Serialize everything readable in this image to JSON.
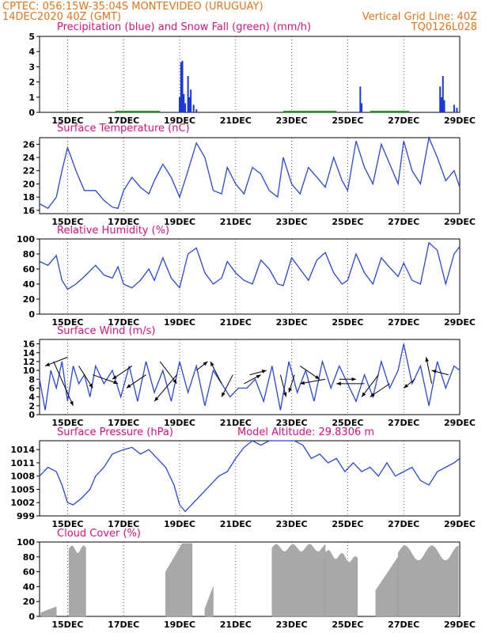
{
  "header": {
    "line1_left": "CPTEC:   056:15W-35:04S   MONTEVIDEO (URUGUAY)",
    "line2_left": "14DEC2020 40Z (GMT)",
    "line2_right": "Vertical Grid Line: 40Z",
    "line3_right": "TQ0126L028"
  },
  "colors": {
    "line": "#2a45e0",
    "precip": "#1a38d8",
    "snow": "#1aa01a",
    "cloud": "#a8a8a8",
    "title": "#e0107a",
    "header": "#e8731a"
  },
  "chart_data": [
    {
      "type": "bar",
      "title": "Precipitation (blue) and Snow Fall (green) (mm/h)",
      "x_ticks": [
        "15DEC",
        "17DEC",
        "19DEC",
        "21DEC",
        "23DEC",
        "25DEC",
        "27DEC",
        "29DEC"
      ],
      "ylim": [
        0,
        5
      ],
      "y_ticks": [
        0,
        1,
        2,
        3,
        4,
        5
      ],
      "series": [
        {
          "name": "Precipitation",
          "color": "blue",
          "x": [
            19.0,
            19.05,
            19.1,
            19.15,
            19.2,
            19.3,
            19.35,
            19.4,
            19.5,
            19.6,
            25.45,
            25.5,
            28.3,
            28.35,
            28.4,
            28.45,
            28.8,
            28.9
          ],
          "values": [
            1.0,
            3.3,
            3.4,
            1.2,
            0.6,
            2.4,
            1.0,
            1.5,
            0.5,
            0.2,
            1.7,
            0.6,
            1.7,
            1.0,
            2.4,
            0.8,
            0.5,
            0.3
          ]
        }
      ],
      "grid": true
    },
    {
      "type": "line",
      "title": "Surface Temperature (nC)",
      "x_ticks": [
        "15DEC",
        "17DEC",
        "19DEC",
        "21DEC",
        "23DEC",
        "25DEC",
        "27DEC",
        "29DEC"
      ],
      "ylim": [
        15.5,
        27
      ],
      "y_ticks": [
        16,
        18,
        20,
        22,
        24,
        26
      ],
      "x": [
        14.0,
        14.3,
        14.6,
        14.8,
        15.0,
        15.3,
        15.6,
        16.0,
        16.3,
        16.6,
        16.8,
        17.0,
        17.3,
        17.6,
        17.9,
        18.1,
        18.4,
        18.7,
        19.0,
        19.3,
        19.6,
        19.9,
        20.2,
        20.5,
        20.7,
        21.0,
        21.3,
        21.6,
        21.9,
        22.2,
        22.5,
        22.7,
        23.0,
        23.3,
        23.6,
        23.9,
        24.2,
        24.5,
        24.8,
        25.0,
        25.3,
        25.6,
        25.9,
        26.2,
        26.5,
        26.8,
        27.0,
        27.3,
        27.6,
        27.9,
        28.2,
        28.5,
        28.8,
        29.0
      ],
      "y": [
        17.0,
        16.3,
        18.0,
        22.0,
        25.5,
        22.0,
        19.0,
        19.0,
        17.5,
        16.5,
        16.3,
        19.0,
        21.0,
        19.5,
        18.5,
        20.5,
        23.0,
        21.0,
        18.0,
        22.0,
        26.2,
        24.0,
        19.0,
        18.5,
        22.5,
        20.0,
        18.5,
        22.5,
        21.5,
        19.0,
        18.0,
        24.0,
        20.0,
        18.5,
        22.5,
        21.0,
        19.5,
        24.0,
        20.5,
        19.0,
        26.5,
        22.5,
        20.0,
        26.0,
        23.0,
        20.0,
        26.5,
        22.0,
        20.0,
        27.0,
        24.0,
        20.5,
        22.0,
        19.5
      ],
      "grid": true
    },
    {
      "type": "line",
      "title": "Relative Humidity (%)",
      "x_ticks": [
        "15DEC",
        "17DEC",
        "19DEC",
        "21DEC",
        "23DEC",
        "25DEC",
        "27DEC",
        "29DEC"
      ],
      "ylim": [
        0,
        100
      ],
      "y_ticks": [
        0,
        20,
        40,
        60,
        80,
        100
      ],
      "x": [
        14.0,
        14.3,
        14.6,
        14.8,
        15.0,
        15.3,
        15.6,
        16.0,
        16.3,
        16.6,
        16.8,
        17.0,
        17.3,
        17.6,
        17.9,
        18.1,
        18.4,
        18.7,
        19.0,
        19.3,
        19.6,
        19.9,
        20.2,
        20.5,
        20.7,
        21.0,
        21.3,
        21.6,
        21.9,
        22.2,
        22.5,
        22.7,
        23.0,
        23.3,
        23.6,
        23.9,
        24.2,
        24.5,
        24.8,
        25.0,
        25.3,
        25.6,
        25.9,
        26.2,
        26.5,
        26.8,
        27.0,
        27.3,
        27.6,
        27.9,
        28.2,
        28.5,
        28.8,
        29.0
      ],
      "y": [
        70,
        65,
        78,
        45,
        33,
        40,
        50,
        65,
        52,
        48,
        63,
        40,
        35,
        45,
        60,
        45,
        75,
        48,
        35,
        80,
        88,
        55,
        40,
        48,
        70,
        55,
        45,
        40,
        72,
        60,
        40,
        38,
        75,
        60,
        45,
        72,
        82,
        55,
        40,
        45,
        80,
        55,
        40,
        75,
        62,
        50,
        68,
        45,
        40,
        95,
        85,
        40,
        80,
        90
      ],
      "grid": true
    },
    {
      "type": "line",
      "title": "Surface Wind (m/s)",
      "x_ticks": [
        "15DEC",
        "17DEC",
        "19DEC",
        "21DEC",
        "23DEC",
        "25DEC",
        "27DEC",
        "29DEC"
      ],
      "ylim": [
        0,
        17
      ],
      "y_ticks": [
        0,
        2,
        4,
        6,
        8,
        10,
        12,
        14,
        16
      ],
      "x": [
        14.0,
        14.2,
        14.4,
        14.6,
        14.8,
        15.0,
        15.2,
        15.4,
        15.6,
        15.8,
        16.0,
        16.3,
        16.6,
        16.9,
        17.2,
        17.5,
        17.8,
        18.1,
        18.4,
        18.7,
        19.0,
        19.3,
        19.6,
        19.9,
        20.2,
        20.5,
        20.8,
        21.1,
        21.4,
        21.7,
        22.0,
        22.3,
        22.6,
        22.9,
        23.2,
        23.5,
        23.8,
        24.1,
        24.4,
        24.7,
        25.0,
        25.3,
        25.6,
        25.9,
        26.2,
        26.5,
        26.8,
        27.0,
        27.3,
        27.6,
        27.9,
        28.2,
        28.5,
        28.8,
        29.0
      ],
      "y": [
        8,
        1,
        10,
        6,
        12,
        3,
        11,
        7,
        9,
        4,
        11,
        7,
        10,
        4,
        11,
        3,
        12,
        5,
        10,
        3,
        12,
        5,
        11,
        2,
        10,
        7,
        4,
        6,
        6,
        8,
        3,
        11,
        1,
        12,
        5,
        10,
        3,
        12,
        6,
        11,
        7,
        3,
        9,
        4,
        12,
        6,
        10,
        16,
        7,
        11,
        2,
        12,
        6,
        11,
        10
      ],
      "grid": true
    },
    {
      "type": "line",
      "title": "Surface Pressure (hPa)",
      "annotation": "Model Altitude: 29.8306 m",
      "x_ticks": [
        "15DEC",
        "17DEC",
        "19DEC",
        "21DEC",
        "23DEC",
        "25DEC",
        "27DEC",
        "29DEC"
      ],
      "ylim": [
        999,
        1016
      ],
      "y_ticks": [
        999,
        1002,
        1005,
        1008,
        1011,
        1014
      ],
      "x": [
        14.0,
        14.3,
        14.6,
        14.8,
        15.0,
        15.2,
        15.5,
        15.8,
        16.0,
        16.3,
        16.6,
        17.0,
        17.3,
        17.6,
        17.9,
        18.2,
        18.5,
        18.8,
        19.0,
        19.2,
        19.5,
        19.8,
        20.1,
        20.4,
        20.7,
        21.0,
        21.3,
        21.6,
        21.9,
        22.2,
        22.5,
        22.8,
        23.1,
        23.4,
        23.7,
        24.0,
        24.3,
        24.6,
        24.9,
        25.2,
        25.5,
        25.8,
        26.1,
        26.4,
        26.7,
        27.0,
        27.3,
        27.6,
        27.9,
        28.2,
        28.5,
        28.8,
        29.0
      ],
      "y": [
        1008,
        1010,
        1009,
        1006,
        1002,
        1001.5,
        1003,
        1005,
        1008,
        1010,
        1013,
        1014,
        1014.5,
        1013,
        1014,
        1012,
        1010,
        1006,
        1001.5,
        1000,
        1002,
        1004,
        1006,
        1008,
        1009,
        1012,
        1014.5,
        1016,
        1015,
        1016,
        1016,
        1016,
        1016,
        1015,
        1012,
        1013,
        1011,
        1012,
        1009,
        1011,
        1009,
        1010,
        1008,
        1011,
        1008,
        1009,
        1010,
        1007,
        1006,
        1009,
        1010,
        1011,
        1012
      ],
      "grid": true
    },
    {
      "type": "bar",
      "title": "Cloud Cover (%)",
      "x_ticks": [
        "15DEC",
        "17DEC",
        "19DEC",
        "21DEC",
        "23DEC",
        "25DEC",
        "27DEC",
        "29DEC"
      ],
      "ylim": [
        0,
        100
      ],
      "y_ticks": [
        0,
        20,
        40,
        60,
        80,
        100
      ],
      "grid": true
    }
  ]
}
